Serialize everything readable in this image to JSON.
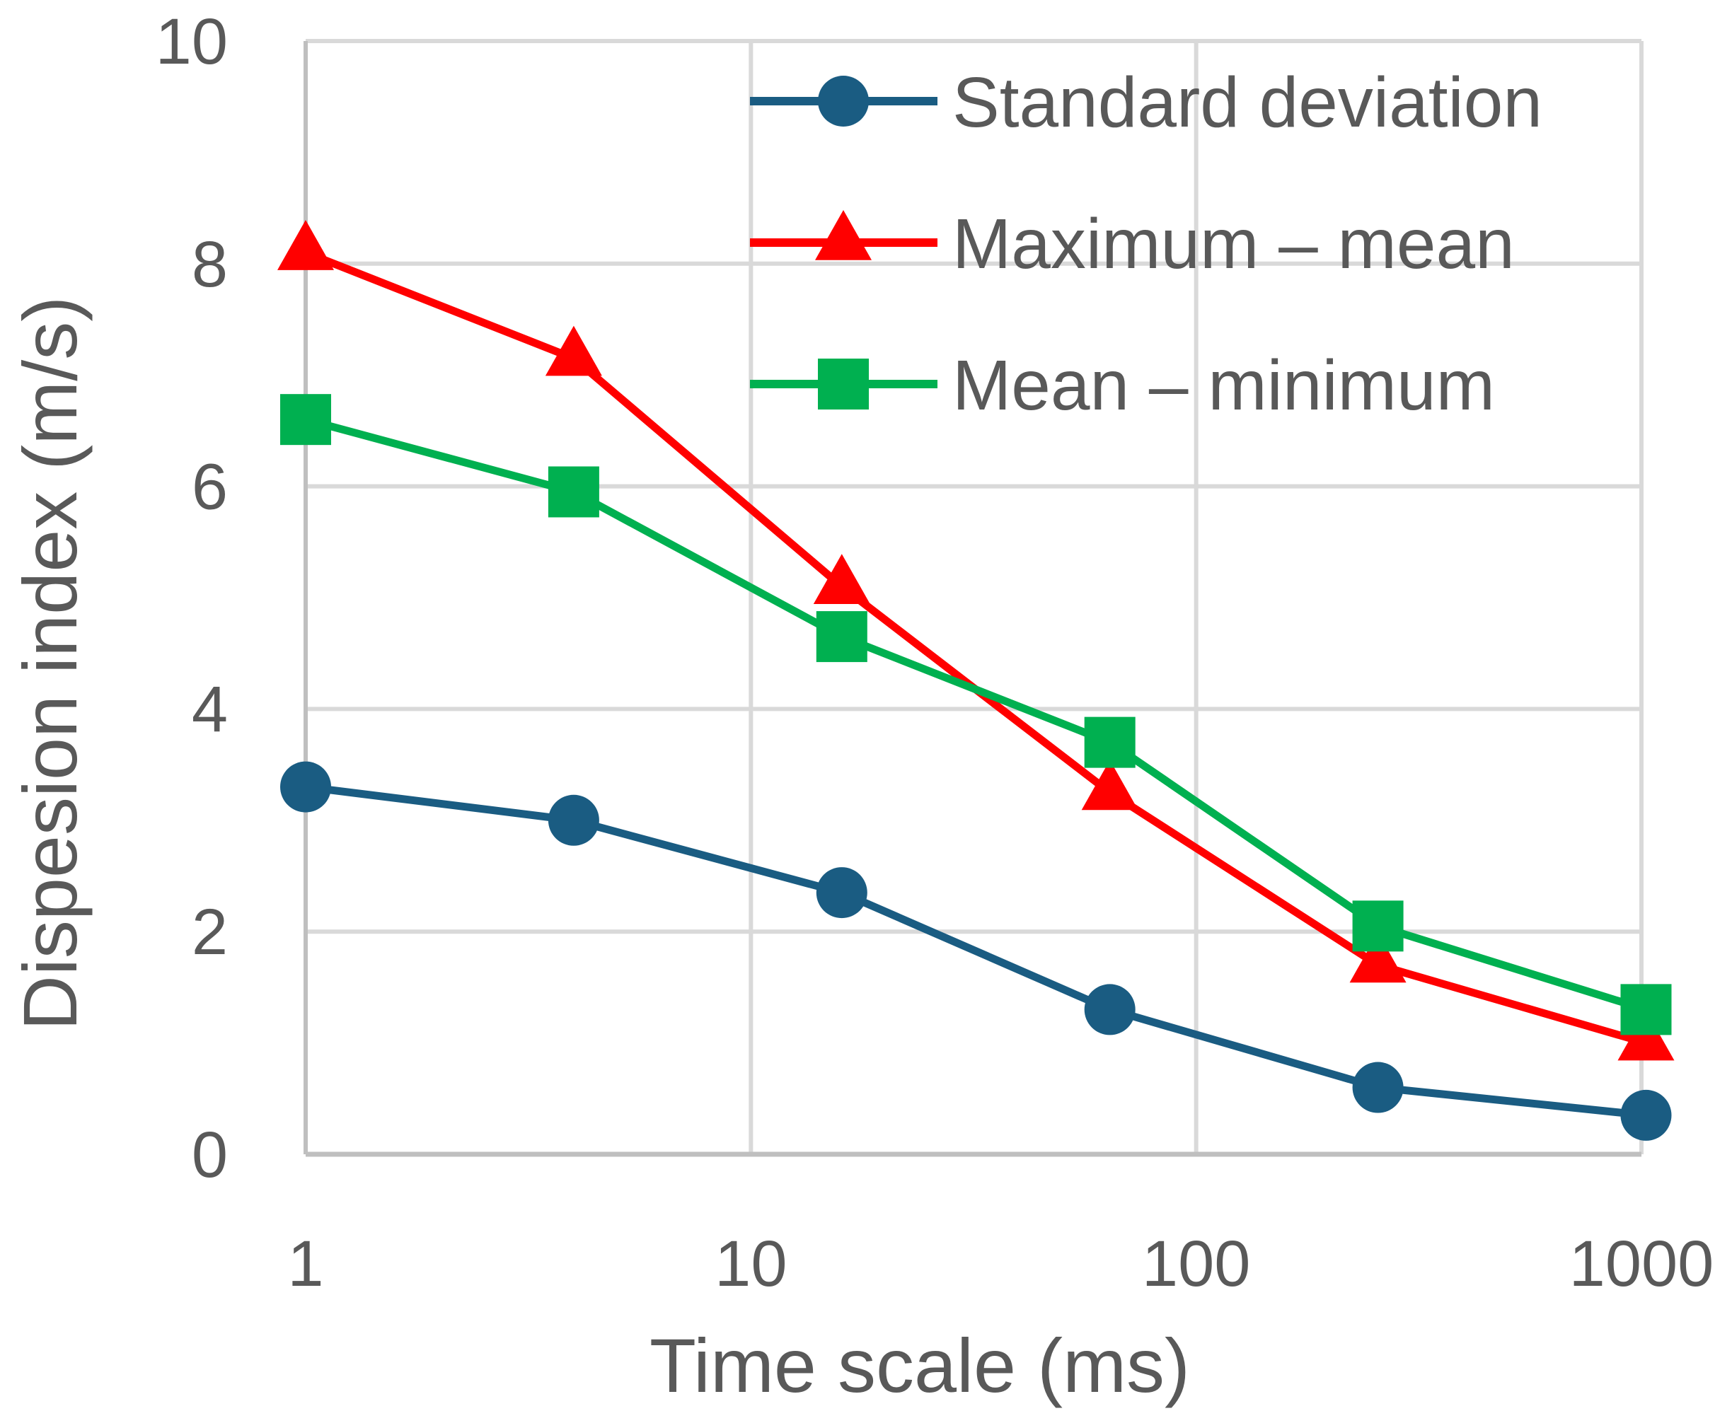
{
  "chart_data": {
    "type": "line",
    "x_scale": "log",
    "x": [
      1,
      4,
      16,
      64,
      256,
      1024
    ],
    "series": [
      {
        "name": "Standard deviation",
        "color": "#1a5c82",
        "marker": "circle",
        "values": [
          3.3,
          3.0,
          2.35,
          1.3,
          0.6,
          0.35
        ]
      },
      {
        "name": "Maximum – mean",
        "color": "#ff0000",
        "marker": "triangle",
        "values": [
          8.1,
          7.15,
          5.1,
          3.25,
          1.7,
          1.0
        ]
      },
      {
        "name": "Mean – minimum",
        "color": "#00b050",
        "marker": "square",
        "values": [
          6.6,
          5.95,
          4.65,
          3.7,
          2.05,
          1.3
        ]
      }
    ],
    "xlabel": "Time scale (ms)",
    "ylabel": "Dispesion index (m/s)",
    "xlim": [
      1,
      1000
    ],
    "ylim": [
      0,
      10
    ],
    "x_ticks": [
      1,
      10,
      100,
      1000
    ],
    "x_tick_labels": [
      "1",
      "10",
      "100",
      "1000"
    ],
    "y_ticks": [
      0,
      2,
      4,
      6,
      8,
      10
    ],
    "y_tick_labels": [
      "0",
      "2",
      "4",
      "6",
      "8",
      "10"
    ],
    "grid": true,
    "legend_position": "top-right",
    "grid_color": "#d9d9d9"
  }
}
